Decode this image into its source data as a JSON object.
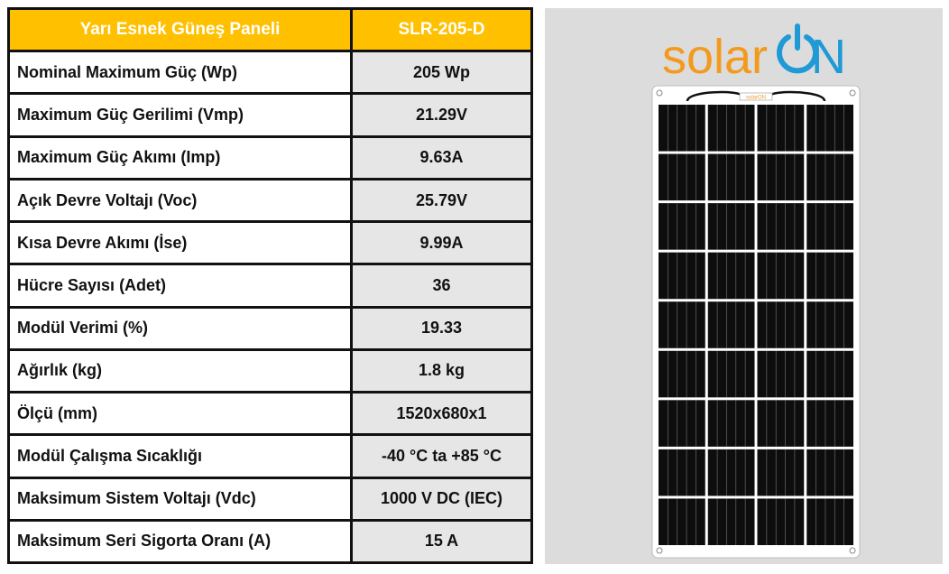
{
  "table": {
    "header": {
      "label": "Yarı Esnek Güneş Paneli",
      "model": "SLR-205-D"
    },
    "rows": [
      {
        "label": "Nominal Maximum Güç (Wp)",
        "value": "205 Wp"
      },
      {
        "label": "Maximum Güç Gerilimi (Vmp)",
        "value": "21.29V"
      },
      {
        "label": "Maximum Güç Akımı (Imp)",
        "value": "9.63A"
      },
      {
        "label": "Açık Devre Voltajı (Voc)",
        "value": "25.79V"
      },
      {
        "label": "Kısa Devre Akımı (İse)",
        "value": "9.99A"
      },
      {
        "label": "Hücre Sayısı (Adet)",
        "value": "36"
      },
      {
        "label": "Modül Verimi (%)",
        "value": "19.33"
      },
      {
        "label": "Ağırlık (kg)",
        "value": "1.8 kg"
      },
      {
        "label": "Ölçü (mm)",
        "value": "1520x680x1"
      },
      {
        "label": "Modül Çalışma Sıcaklığı",
        "value": "-40 °C ta +85 °C"
      },
      {
        "label": "Maksimum Sistem Voltajı (Vdc)",
        "value": "1000 V DC (IEC)"
      },
      {
        "label": "Maksimum Seri Sigorta Oranı (A)",
        "value": "15 A"
      }
    ]
  },
  "logo": {
    "text_left": "solar",
    "text_right": "ON",
    "left_color": "#f39a1e",
    "right_color": "#1f9ad6"
  },
  "panel": {
    "label": "solarON",
    "columns": 4,
    "rows": 9
  },
  "colors": {
    "header_bg": "#ffc000",
    "value_bg": "#e6e6e6",
    "panel_bg": "#dcdcdc"
  }
}
